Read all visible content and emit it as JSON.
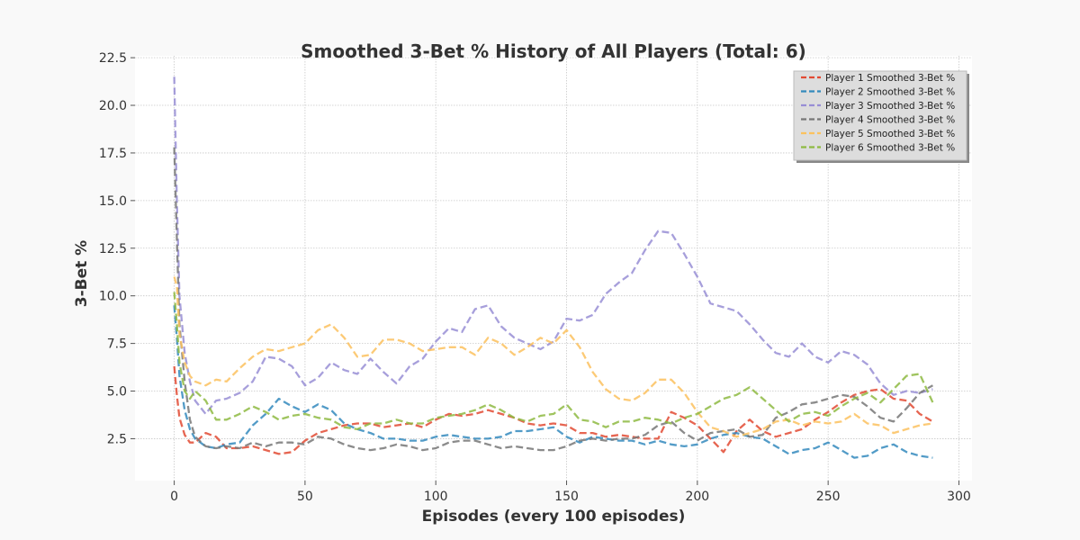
{
  "chart_data": {
    "type": "line",
    "title": "Smoothed 3-Bet % History of All Players (Total: 6)",
    "xlabel": "Episodes (every 100 episodes)",
    "ylabel": "3-Bet %",
    "xlim": [
      -15,
      305
    ],
    "ylim": [
      0.3,
      22.6
    ],
    "xticks": [
      0,
      50,
      100,
      150,
      200,
      250,
      300
    ],
    "yticks": [
      2.5,
      5.0,
      7.5,
      10.0,
      12.5,
      15.0,
      17.5,
      20.0,
      22.5
    ],
    "grid": true,
    "line_style": "dashed",
    "legend_position": "top-right",
    "series": [
      {
        "name": "Player 1 Smoothed 3-Bet %",
        "color": "#e24a33",
        "x": [
          0,
          1,
          2,
          4,
          6,
          8,
          12,
          16,
          20,
          25,
          30,
          35,
          40,
          45,
          50,
          55,
          60,
          65,
          70,
          75,
          80,
          85,
          90,
          95,
          100,
          105,
          110,
          115,
          120,
          125,
          130,
          135,
          140,
          145,
          150,
          155,
          160,
          165,
          170,
          175,
          180,
          185,
          190,
          195,
          200,
          205,
          210,
          215,
          220,
          225,
          230,
          235,
          240,
          245,
          250,
          255,
          260,
          265,
          270,
          275,
          280,
          285,
          290
        ],
        "y": [
          6.3,
          4.8,
          3.6,
          2.7,
          2.3,
          2.3,
          2.8,
          2.6,
          2.0,
          2.0,
          2.1,
          1.9,
          1.7,
          1.8,
          2.4,
          2.8,
          3.0,
          3.2,
          3.3,
          3.3,
          3.1,
          3.2,
          3.3,
          3.1,
          3.5,
          3.8,
          3.7,
          3.8,
          4.0,
          3.8,
          3.6,
          3.3,
          3.2,
          3.3,
          3.2,
          2.8,
          2.8,
          2.6,
          2.7,
          2.6,
          2.5,
          2.5,
          3.9,
          3.6,
          3.2,
          2.5,
          1.8,
          2.9,
          3.5,
          2.9,
          2.6,
          2.8,
          3.0,
          3.5,
          3.9,
          4.4,
          4.8,
          5.0,
          5.1,
          4.6,
          4.5,
          3.8,
          3.4
        ]
      },
      {
        "name": "Player 2 Smoothed 3-Bet %",
        "color": "#348abd",
        "x": [
          0,
          1,
          2,
          4,
          6,
          8,
          12,
          16,
          20,
          25,
          30,
          35,
          40,
          45,
          50,
          55,
          60,
          65,
          70,
          75,
          80,
          85,
          90,
          95,
          100,
          105,
          110,
          115,
          120,
          125,
          130,
          135,
          140,
          145,
          150,
          155,
          160,
          165,
          170,
          175,
          180,
          185,
          190,
          195,
          200,
          205,
          210,
          215,
          220,
          225,
          230,
          235,
          240,
          245,
          250,
          255,
          260,
          265,
          270,
          275,
          280,
          285,
          290
        ],
        "y": [
          9.5,
          7.8,
          5.8,
          4.0,
          3.0,
          2.5,
          2.1,
          2.0,
          2.2,
          2.3,
          3.2,
          3.8,
          4.6,
          4.2,
          3.9,
          4.3,
          4.0,
          3.3,
          3.0,
          2.8,
          2.5,
          2.5,
          2.4,
          2.4,
          2.6,
          2.7,
          2.6,
          2.5,
          2.5,
          2.6,
          2.9,
          2.9,
          3.0,
          3.1,
          2.6,
          2.3,
          2.6,
          2.5,
          2.4,
          2.4,
          2.2,
          2.4,
          2.2,
          2.1,
          2.2,
          2.5,
          2.7,
          2.8,
          2.6,
          2.5,
          2.1,
          1.7,
          1.9,
          2.0,
          2.3,
          1.9,
          1.5,
          1.6,
          2.0,
          2.2,
          1.8,
          1.6,
          1.5
        ]
      },
      {
        "name": "Player 3 Smoothed 3-Bet %",
        "color": "#988ed5",
        "x": [
          0,
          1,
          2,
          4,
          6,
          8,
          12,
          16,
          20,
          25,
          30,
          35,
          40,
          45,
          50,
          55,
          60,
          65,
          70,
          75,
          80,
          85,
          90,
          95,
          100,
          105,
          110,
          115,
          120,
          125,
          130,
          135,
          140,
          145,
          150,
          155,
          160,
          165,
          170,
          175,
          180,
          185,
          190,
          195,
          200,
          205,
          210,
          215,
          220,
          225,
          230,
          235,
          240,
          245,
          250,
          255,
          260,
          265,
          270,
          275,
          280,
          285,
          290
        ],
        "y": [
          21.5,
          15.0,
          10.0,
          7.0,
          5.5,
          4.5,
          3.8,
          4.5,
          4.6,
          4.9,
          5.5,
          6.8,
          6.7,
          6.3,
          5.3,
          5.7,
          6.5,
          6.1,
          5.9,
          6.7,
          6.0,
          5.4,
          6.3,
          6.7,
          7.6,
          8.3,
          8.1,
          9.3,
          9.5,
          8.4,
          7.8,
          7.5,
          7.2,
          7.6,
          8.8,
          8.7,
          9.0,
          10.1,
          10.7,
          11.2,
          12.4,
          13.4,
          13.3,
          12.2,
          11.0,
          9.6,
          9.4,
          9.2,
          8.5,
          7.7,
          7.0,
          6.8,
          7.5,
          6.8,
          6.5,
          7.1,
          6.9,
          6.4,
          5.4,
          4.8,
          5.0,
          4.9,
          5.1
        ]
      },
      {
        "name": "Player 4 Smoothed 3-Bet %",
        "color": "#777777",
        "x": [
          0,
          1,
          2,
          4,
          6,
          8,
          12,
          16,
          20,
          25,
          30,
          35,
          40,
          45,
          50,
          55,
          60,
          65,
          70,
          75,
          80,
          85,
          90,
          95,
          100,
          105,
          110,
          115,
          120,
          125,
          130,
          135,
          140,
          145,
          150,
          155,
          160,
          165,
          170,
          175,
          180,
          185,
          190,
          195,
          200,
          205,
          210,
          215,
          220,
          225,
          230,
          235,
          240,
          245,
          250,
          255,
          260,
          265,
          270,
          275,
          280,
          285,
          290
        ],
        "y": [
          17.8,
          13.0,
          8.5,
          5.5,
          3.5,
          2.6,
          2.1,
          2.0,
          2.1,
          2.0,
          2.3,
          2.1,
          2.3,
          2.3,
          2.2,
          2.6,
          2.5,
          2.2,
          2.0,
          1.9,
          2.0,
          2.2,
          2.1,
          1.9,
          2.0,
          2.3,
          2.4,
          2.4,
          2.2,
          2.0,
          2.1,
          2.0,
          1.9,
          1.9,
          2.1,
          2.4,
          2.5,
          2.4,
          2.5,
          2.5,
          2.7,
          3.2,
          3.4,
          2.8,
          2.4,
          2.8,
          2.9,
          3.0,
          2.6,
          2.7,
          3.6,
          3.9,
          4.3,
          4.4,
          4.6,
          4.8,
          4.7,
          4.2,
          3.6,
          3.4,
          4.1,
          4.9,
          5.3
        ]
      },
      {
        "name": "Player 5 Smoothed 3-Bet %",
        "color": "#fbc15e",
        "x": [
          0,
          1,
          2,
          4,
          6,
          8,
          12,
          16,
          20,
          25,
          30,
          35,
          40,
          45,
          50,
          55,
          60,
          65,
          70,
          75,
          80,
          85,
          90,
          95,
          100,
          105,
          110,
          115,
          120,
          125,
          130,
          135,
          140,
          145,
          150,
          155,
          160,
          165,
          170,
          175,
          180,
          185,
          190,
          195,
          200,
          205,
          210,
          215,
          220,
          225,
          230,
          235,
          240,
          245,
          250,
          255,
          260,
          265,
          270,
          275,
          280,
          285,
          290
        ],
        "y": [
          11.0,
          10.5,
          8.0,
          6.5,
          5.8,
          5.5,
          5.3,
          5.6,
          5.5,
          6.2,
          6.8,
          7.2,
          7.1,
          7.3,
          7.5,
          8.2,
          8.5,
          7.8,
          6.8,
          6.9,
          7.7,
          7.7,
          7.5,
          7.1,
          7.2,
          7.3,
          7.3,
          6.9,
          7.8,
          7.5,
          6.9,
          7.3,
          7.8,
          7.5,
          8.2,
          7.3,
          6.0,
          5.1,
          4.6,
          4.5,
          4.9,
          5.6,
          5.6,
          4.9,
          3.9,
          3.1,
          2.9,
          2.6,
          2.8,
          3.0,
          3.4,
          3.5,
          3.2,
          3.4,
          3.3,
          3.4,
          3.8,
          3.3,
          3.2,
          2.8,
          3.0,
          3.2,
          3.3
        ]
      },
      {
        "name": "Player 6 Smoothed 3-Bet %",
        "color": "#8eba42",
        "x": [
          0,
          1,
          2,
          4,
          6,
          8,
          12,
          16,
          20,
          25,
          30,
          35,
          40,
          45,
          50,
          55,
          60,
          65,
          70,
          75,
          80,
          85,
          90,
          95,
          100,
          105,
          110,
          115,
          120,
          125,
          130,
          135,
          140,
          145,
          150,
          155,
          160,
          165,
          170,
          175,
          180,
          185,
          190,
          195,
          200,
          205,
          210,
          215,
          220,
          225,
          230,
          235,
          240,
          245,
          250,
          255,
          260,
          265,
          270,
          275,
          280,
          285,
          290
        ],
        "y": [
          10.2,
          8.5,
          6.5,
          5.0,
          4.6,
          5.0,
          4.5,
          3.5,
          3.5,
          3.8,
          4.2,
          3.9,
          3.5,
          3.7,
          3.8,
          3.6,
          3.5,
          3.1,
          3.0,
          3.3,
          3.3,
          3.5,
          3.3,
          3.3,
          3.6,
          3.7,
          3.8,
          4.0,
          4.3,
          4.0,
          3.6,
          3.4,
          3.7,
          3.8,
          4.3,
          3.5,
          3.4,
          3.1,
          3.4,
          3.4,
          3.6,
          3.5,
          3.3,
          3.6,
          3.8,
          4.2,
          4.6,
          4.8,
          5.2,
          4.6,
          4.0,
          3.4,
          3.8,
          3.9,
          3.7,
          4.2,
          4.6,
          4.9,
          4.4,
          5.1,
          5.8,
          5.9,
          4.4
        ]
      }
    ]
  }
}
